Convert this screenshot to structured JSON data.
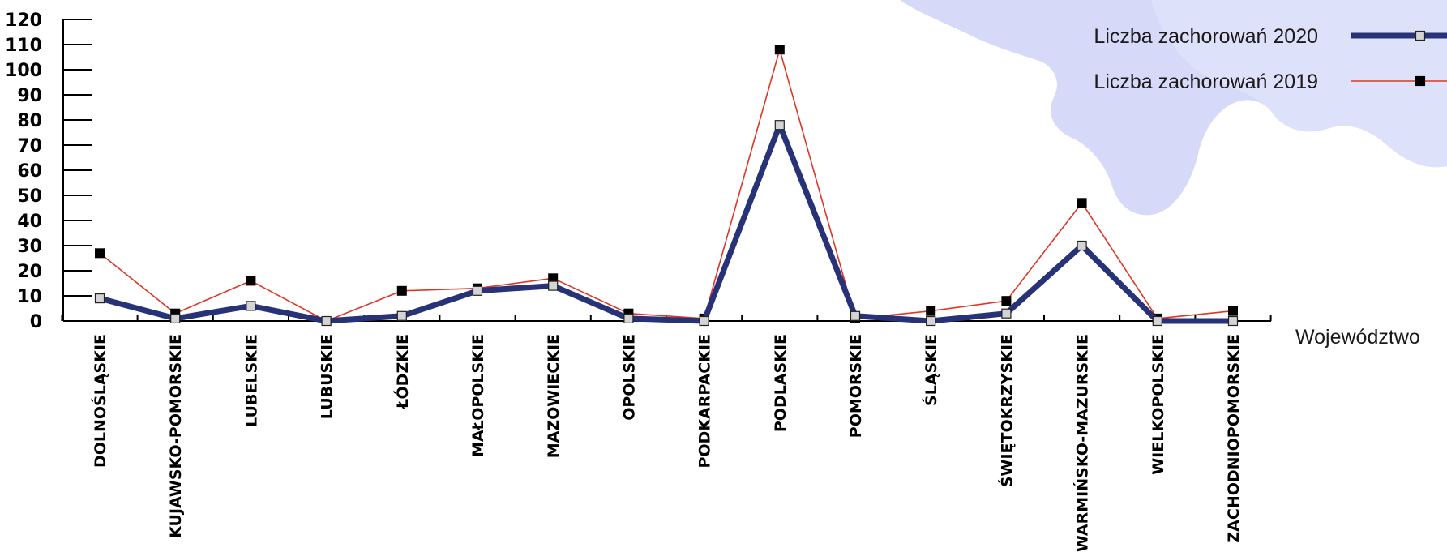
{
  "chart_data": {
    "type": "line",
    "categories": [
      "DOLNOŚLĄSKIE",
      "KUJAWSKO-POMORSKIE",
      "LUBELSKIE",
      "LUBUSKIE",
      "ŁÓDZKIE",
      "MAŁOPOLSKIE",
      "MAZOWIECKIE",
      "OPOLSKIE",
      "PODKARPACKIE",
      "PODLASKIE",
      "POMORSKIE",
      "ŚLĄSKIE",
      "ŚWIĘTOKRZYSKIE",
      "WARMIŃSKO-MAZURSKIE",
      "WIELKOPOLSKIE",
      "ZACHODNIOPOMORSKIE"
    ],
    "series": [
      {
        "name": "Liczba zachorowań 2020",
        "color": "#283377",
        "marker": "square-open",
        "values": [
          9,
          1,
          6,
          0,
          2,
          12,
          14,
          1,
          0,
          78,
          2,
          0,
          3,
          30,
          0,
          0
        ]
      },
      {
        "name": "Liczba zachorowań 2019",
        "color": "#e03524",
        "marker": "square-filled",
        "values": [
          27,
          3,
          16,
          0,
          12,
          13,
          17,
          3,
          1,
          108,
          1,
          4,
          8,
          47,
          1,
          4
        ]
      }
    ],
    "xlabel": "Województwo",
    "ylabel": "",
    "ylim": [
      0,
      120
    ],
    "yticks": [
      0,
      10,
      20,
      30,
      40,
      50,
      60,
      70,
      80,
      90,
      100,
      110,
      120
    ],
    "grid": false,
    "legend_position": "top-right"
  },
  "decoration": {
    "map_color": "#cfd2f7"
  }
}
